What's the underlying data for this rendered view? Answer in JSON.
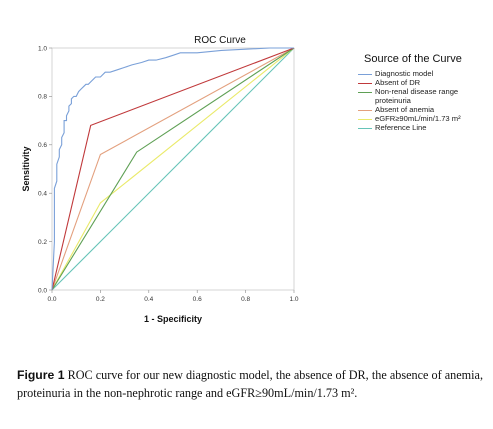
{
  "chart_data": {
    "type": "line",
    "title": "ROC Curve",
    "xlabel": "1 - Specificity",
    "ylabel": "Sensitivity",
    "xlim": [
      0,
      1
    ],
    "ylim": [
      0,
      1
    ],
    "x_ticks": [
      "0.0",
      "0.2",
      "0.4",
      "0.6",
      "0.8",
      "1.0"
    ],
    "y_ticks": [
      "0.0",
      "0.2",
      "0.4",
      "0.6",
      "0.8",
      "1.0"
    ],
    "legend_title": "Source of the Curve",
    "legend_position": "right",
    "grid": false,
    "series": [
      {
        "name": "Diagnostic model",
        "color": "#7aa0d8",
        "x": [
          0,
          0.005,
          0.01,
          0.01,
          0.02,
          0.02,
          0.03,
          0.03,
          0.04,
          0.04,
          0.05,
          0.05,
          0.06,
          0.06,
          0.07,
          0.07,
          0.08,
          0.08,
          0.09,
          0.1,
          0.11,
          0.12,
          0.13,
          0.14,
          0.15,
          0.16,
          0.17,
          0.18,
          0.2,
          0.22,
          0.24,
          0.27,
          0.3,
          0.33,
          0.37,
          0.4,
          0.43,
          0.47,
          0.5,
          0.53,
          0.6,
          0.7,
          0.8,
          0.9,
          1.0
        ],
        "y": [
          0,
          0.1,
          0.2,
          0.42,
          0.45,
          0.52,
          0.55,
          0.58,
          0.6,
          0.63,
          0.65,
          0.7,
          0.7,
          0.72,
          0.74,
          0.76,
          0.77,
          0.79,
          0.8,
          0.8,
          0.82,
          0.83,
          0.84,
          0.85,
          0.85,
          0.86,
          0.87,
          0.88,
          0.88,
          0.9,
          0.9,
          0.91,
          0.92,
          0.93,
          0.94,
          0.95,
          0.95,
          0.96,
          0.97,
          0.98,
          0.98,
          0.99,
          0.995,
          1.0,
          1.0
        ]
      },
      {
        "name": "Absent of DR",
        "color": "#c0393b",
        "x": [
          0,
          0.16,
          1.0
        ],
        "y": [
          0,
          0.68,
          1.0
        ]
      },
      {
        "name": "Non-renal disease range proteinuria",
        "color": "#5fa055",
        "x": [
          0,
          0.35,
          1.0
        ],
        "y": [
          0,
          0.57,
          1.0
        ]
      },
      {
        "name": "Absent of anemia",
        "color": "#e3a07e",
        "x": [
          0,
          0.2,
          1.0
        ],
        "y": [
          0,
          0.56,
          1.0
        ]
      },
      {
        "name": "eGFR≥90mL/min/1.73 m²",
        "color": "#eaea6a",
        "x": [
          0,
          0.2,
          1.0
        ],
        "y": [
          0,
          0.36,
          1.0
        ]
      },
      {
        "name": "Reference Line",
        "color": "#66c4b8",
        "x": [
          0,
          1.0
        ],
        "y": [
          0,
          1.0
        ]
      }
    ]
  },
  "caption": {
    "label": "Figure 1",
    "text": "ROC curve for our new diagnostic model, the absence of DR, the absence of anemia, proteinuria in the non-nephrotic range and eGFR≥90mL/min/1.73 m²."
  }
}
